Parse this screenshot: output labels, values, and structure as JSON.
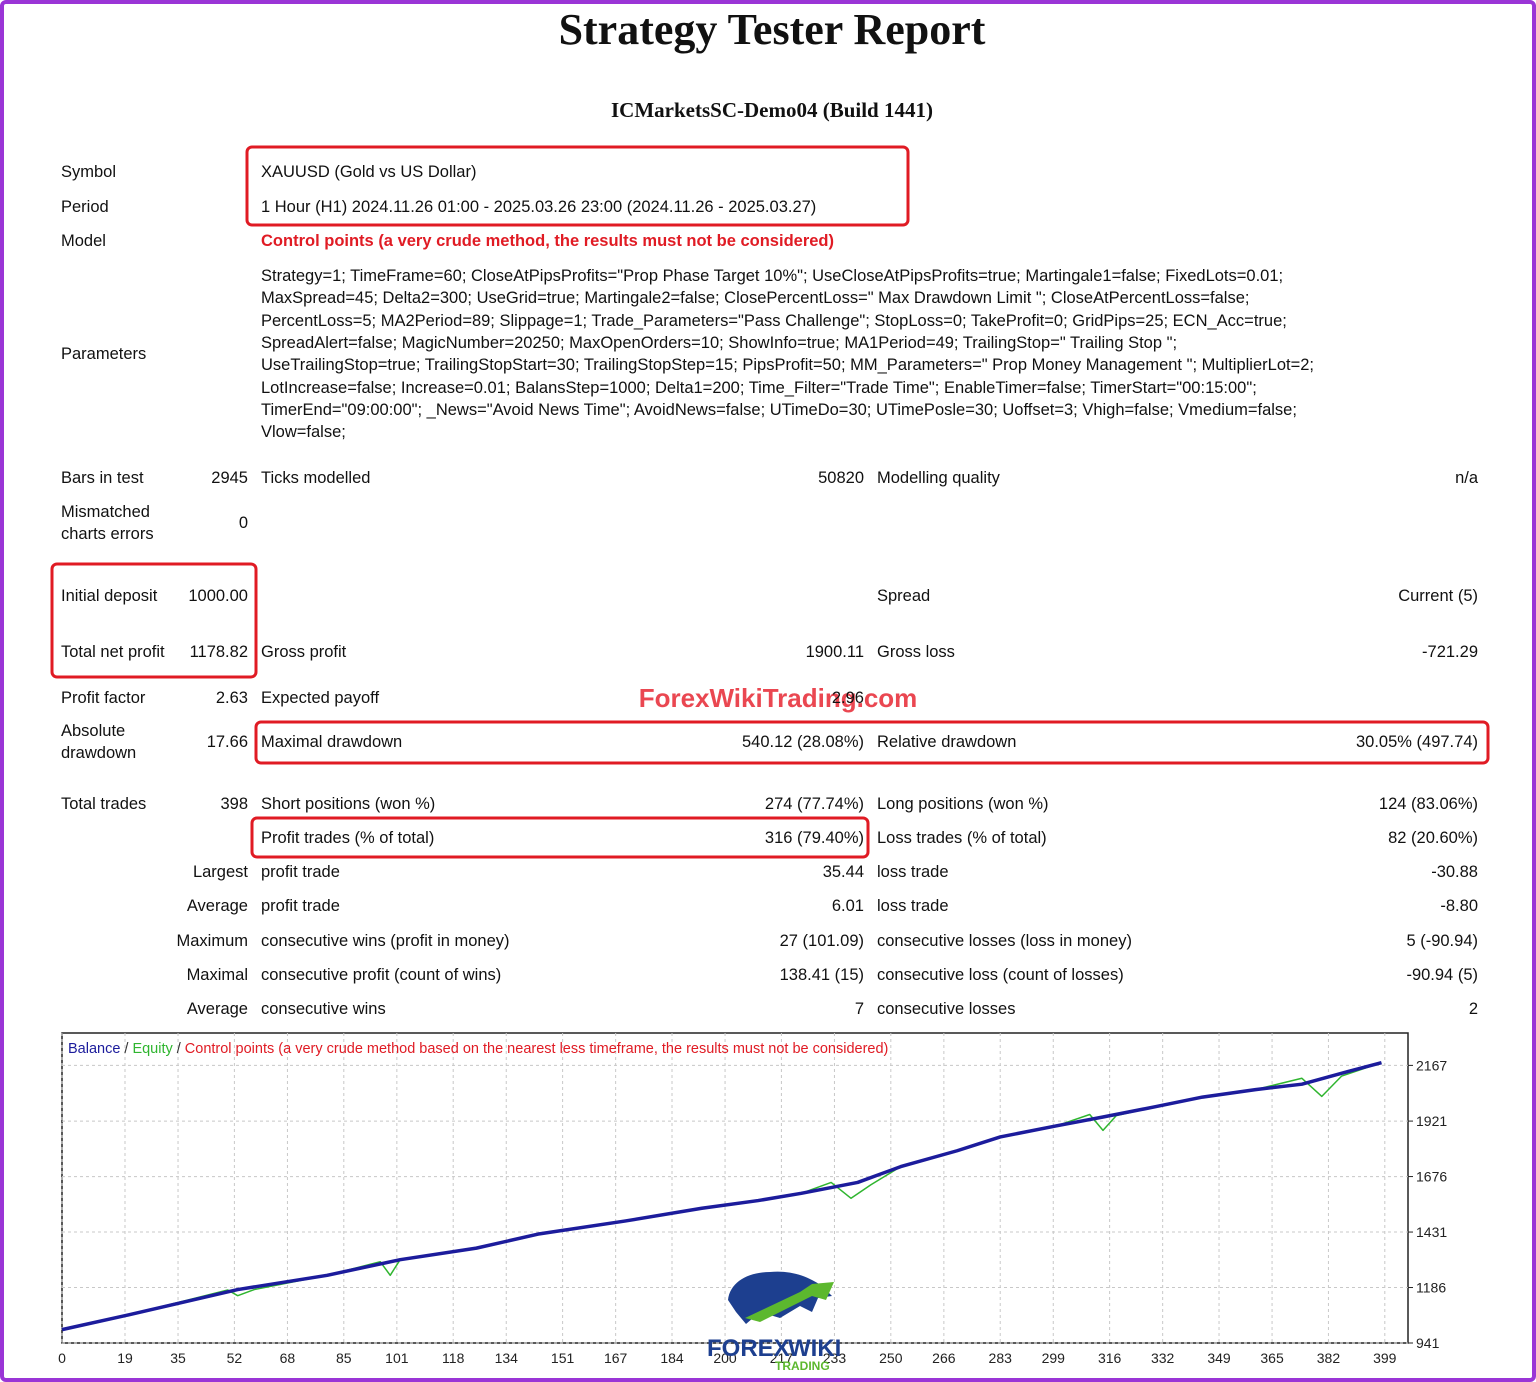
{
  "header": {
    "title": "Strategy Tester Report",
    "server": "ICMarketsSC-Demo04 (Build 1441)"
  },
  "info": [
    {
      "label": "Symbol",
      "value": "XAUUSD (Gold vs US Dollar)"
    },
    {
      "label": "Period",
      "value": "1 Hour (H1) 2024.11.26 01:00 - 2025.03.26 23:00 (2024.11.26 - 2025.03.27)"
    },
    {
      "label": "Model",
      "value": "Control points (a very crude method, the results must not be considered)"
    }
  ],
  "parameters": {
    "label": "Parameters",
    "lines": [
      "Strategy=1; TimeFrame=60; CloseAtPipsProfits=\"Prop Phase Target 10%\"; UseCloseAtPipsProfits=true; Martingale1=false; FixedLots=0.01;",
      "MaxSpread=45; Delta2=300; UseGrid=true; Martingale2=false; ClosePercentLoss=\" Max Drawdown Limit \"; CloseAtPercentLoss=false;",
      "PercentLoss=5; MA2Period=89; Slippage=1; Trade_Parameters=\"Pass Challenge\"; StopLoss=0; TakeProfit=0; GridPips=25; ECN_Acc=true;",
      "SpreadAlert=false; MagicNumber=20250; MaxOpenOrders=10; ShowInfo=true; MA1Period=49; TrailingStop=\" Trailing Stop \";",
      "UseTrailingStop=true; TrailingStopStart=30; TrailingStopStep=15; PipsProfit=50; MM_Parameters=\" Prop Money Management \"; MultiplierLot=2;",
      "LotIncrease=false; Increase=0.01; BalansStep=1000; Delta1=200; Time_Filter=\"Trade Time\"; EnableTimer=false; TimerStart=\"00:15:00\";",
      "TimerEnd=\"09:00:00\"; _News=\"Avoid News Time\"; AvoidNews=false; UTimeDo=30; UTimePosle=30; Uoffset=3; Vhigh=false; Vmedium=false;",
      "Vlow=false;"
    ]
  },
  "stats": [
    [
      "Bars in test",
      "2945",
      "Ticks modelled",
      "50820",
      "Modelling quality",
      "n/a"
    ],
    [
      "Mismatched charts errors",
      "0",
      null,
      null,
      null,
      null
    ],
    [
      "Initial deposit",
      "1000.00",
      null,
      null,
      "Spread",
      "Current (5)"
    ],
    [
      "Total net profit",
      "1178.82",
      "Gross profit",
      "1900.11",
      "Gross loss",
      "-721.29"
    ],
    [
      "Profit factor",
      "2.63",
      "Expected payoff",
      "2.96",
      null,
      null
    ],
    [
      "Absolute drawdown",
      "17.66",
      "Maximal drawdown",
      "540.12 (28.08%)",
      "Relative drawdown",
      "30.05% (497.74)"
    ],
    [
      "Total trades",
      "398",
      "Short positions (won %)",
      "274 (77.74%)",
      "Long positions (won %)",
      "124 (83.06%)"
    ],
    [
      null,
      null,
      "Profit trades (% of total)",
      "316 (79.40%)",
      "Loss trades (% of total)",
      "82 (20.60%)"
    ],
    [
      "Largest",
      null,
      "profit trade",
      "35.44",
      "loss trade",
      "-30.88"
    ],
    [
      "Average",
      null,
      "profit trade",
      "6.01",
      "loss trade",
      "-8.80"
    ],
    [
      "Maximum",
      null,
      "consecutive wins (profit in money)",
      "27 (101.09)",
      "consecutive losses (loss in money)",
      "5 (-90.94)"
    ],
    [
      "Maximal",
      null,
      "consecutive profit (count of wins)",
      "138.41 (15)",
      "consecutive loss (count of losses)",
      "-90.94 (5)"
    ],
    [
      "Average",
      null,
      "consecutive wins",
      "7",
      "consecutive losses",
      "2"
    ]
  ],
  "watermark": "ForexWikiTrading.com",
  "logo": {
    "top": "FOREX",
    "middle": "WIKI",
    "bottom": "TRADING"
  },
  "chart": {
    "legend": {
      "balance": "Balance",
      "equity": "Equity",
      "note": "Control points (a very crude method based on the nearest less timeframe, the results must not be considered)",
      "separator": "/"
    },
    "xlim": [
      0,
      406
    ],
    "ylim": [
      941,
      2310
    ],
    "xticks": [
      0,
      19,
      35,
      52,
      68,
      85,
      101,
      118,
      134,
      151,
      167,
      184,
      200,
      217,
      233,
      250,
      266,
      283,
      299,
      316,
      332,
      349,
      365,
      382,
      399
    ],
    "yticks": [
      941,
      1186,
      1431,
      1676,
      1921,
      2167
    ],
    "series": [
      {
        "name": "Equity",
        "color": "#2fb52f",
        "x": [
          0,
          20,
          50,
          53,
          58,
          80,
          96,
          99,
          102,
          125,
          144,
          170,
          193,
          210,
          223,
          232,
          238,
          244,
          253,
          270,
          283,
          300,
          310,
          314,
          318,
          330,
          344,
          360,
          374,
          380,
          386,
          398
        ],
        "values": [
          1000,
          1065,
          1175,
          1150,
          1177,
          1240,
          1300,
          1240,
          1309,
          1360,
          1423,
          1480,
          1536,
          1570,
          1602,
          1650,
          1580,
          1640,
          1720,
          1790,
          1851,
          1900,
          1950,
          1880,
          1945,
          1985,
          2027,
          2060,
          2110,
          2030,
          2120,
          2178.82
        ]
      },
      {
        "name": "Balance",
        "color": "#1c1c9c",
        "x": [
          0,
          20,
          53,
          80,
          102,
          125,
          144,
          170,
          193,
          210,
          223,
          240,
          253,
          270,
          283,
          300,
          314,
          330,
          344,
          360,
          374,
          388,
          398
        ],
        "values": [
          1000,
          1065,
          1177,
          1240,
          1309,
          1360,
          1423,
          1480,
          1536,
          1570,
          1602,
          1650,
          1720,
          1790,
          1851,
          1900,
          1939,
          1985,
          2027,
          2060,
          2084,
          2140,
          2178.82
        ]
      }
    ]
  }
}
